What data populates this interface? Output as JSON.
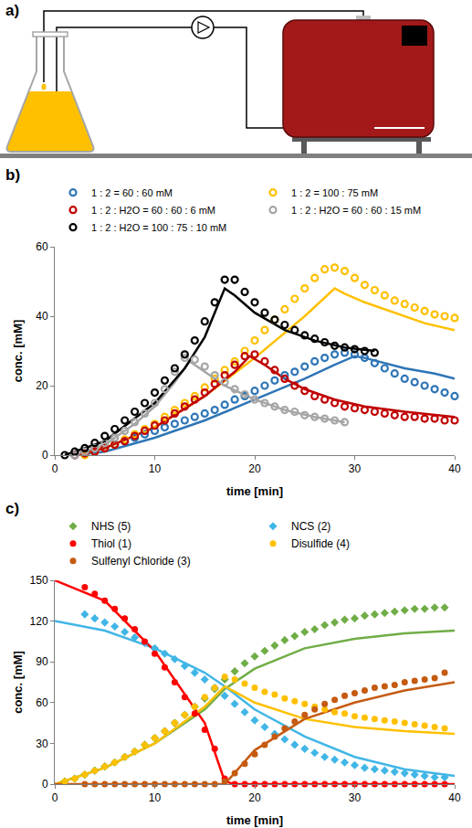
{
  "diagram": {
    "label": "a)"
  },
  "chart_data": [
    {
      "label": "b)",
      "type": "scatter",
      "x_label": "time [min]",
      "y_label": "conc. [mM]",
      "xlim": [
        0,
        40
      ],
      "xticks": [
        0,
        10,
        20,
        30,
        40
      ],
      "ylim": [
        0,
        60
      ],
      "yticks": [
        0,
        20,
        40,
        60
      ],
      "grid": false,
      "legend": "top",
      "series": [
        {
          "name": "1 : 2 = 60 : 60 mM",
          "color": "#2e75b6",
          "marker": "circle-open",
          "x": [
            2,
            3,
            4,
            5,
            6,
            7,
            8,
            9,
            10,
            11,
            12,
            13,
            14,
            15,
            16,
            17,
            18,
            19,
            20,
            21,
            22,
            23,
            24,
            25,
            26,
            27,
            28,
            29,
            30,
            31,
            32,
            33,
            34,
            35,
            36,
            37,
            38,
            39,
            40
          ],
          "values": [
            0,
            0.5,
            1,
            2,
            3,
            4,
            5,
            6,
            7,
            8,
            9,
            10,
            11,
            12,
            13,
            14.5,
            16,
            17,
            18.5,
            20,
            21.5,
            23,
            24,
            25.5,
            27,
            28,
            29,
            29.5,
            29,
            28,
            26.5,
            25,
            23.5,
            22,
            21,
            20,
            19,
            18,
            17
          ],
          "model": {
            "line_style": "solid",
            "x": [
              2,
              5,
              10,
              15,
              20,
              25,
              28,
              30,
              31,
              33,
              35,
              38,
              40
            ],
            "values": [
              0,
              1,
              5,
              10,
              16,
              22,
              26,
              28.5,
              28,
              26.5,
              25,
              23.5,
              22
            ]
          }
        },
        {
          "name": "1 : 2 = 100 : 75 mM",
          "color": "#ffc000",
          "marker": "circle-open",
          "x": [
            3,
            4,
            5,
            6,
            7,
            8,
            9,
            10,
            11,
            12,
            13,
            14,
            15,
            16,
            17,
            18,
            19,
            20,
            21,
            22,
            23,
            24,
            25,
            26,
            27,
            28,
            29,
            30,
            31,
            32,
            33,
            34,
            35,
            36,
            37,
            38,
            39,
            40
          ],
          "values": [
            0,
            1,
            2,
            3,
            4.5,
            6,
            7.5,
            9,
            11,
            13,
            15,
            17,
            19.5,
            22,
            24.5,
            27,
            30,
            33,
            36,
            39,
            42,
            45,
            48,
            51,
            53.5,
            54,
            53,
            51,
            49,
            47.5,
            46,
            44.5,
            43.5,
            42.5,
            41.5,
            40.5,
            40,
            39.5
          ],
          "model": {
            "line_style": "solid",
            "x": [
              2,
              5,
              10,
              15,
              20,
              25,
              28,
              29,
              31,
              34,
              37,
              40
            ],
            "values": [
              0,
              2,
              8,
              17,
              28,
              40,
              48,
              46.5,
              44,
              41,
              38,
              36
            ]
          }
        },
        {
          "name": "1 : 2 : H2O = 60 : 60 : 6 mM",
          "color": "#c00000",
          "marker": "circle-open",
          "x": [
            2,
            3,
            4,
            5,
            6,
            7,
            8,
            9,
            10,
            11,
            12,
            13,
            14,
            15,
            16,
            17,
            18,
            19,
            20,
            21,
            22,
            23,
            24,
            25,
            26,
            27,
            28,
            29,
            30,
            31,
            32,
            33,
            34,
            35,
            36,
            37,
            38,
            39,
            40
          ],
          "values": [
            0,
            0.5,
            1,
            2,
            3,
            4,
            5.5,
            7,
            8.5,
            10,
            12,
            14,
            16,
            18,
            20.5,
            23,
            26,
            28.5,
            29,
            27,
            24.5,
            22,
            20,
            18.5,
            17,
            16,
            15,
            14,
            13.5,
            13,
            12.5,
            12,
            11.5,
            11,
            11,
            10.5,
            10.5,
            10,
            10
          ],
          "model": {
            "line_style": "solid",
            "x": [
              2,
              5,
              10,
              15,
              18,
              19.5,
              21,
              23,
              25,
              28,
              31,
              35,
              40
            ],
            "values": [
              0,
              2,
              8,
              17,
              24,
              28.5,
              26,
              22,
              19,
              16,
              14,
              12.5,
              11
            ]
          }
        },
        {
          "name": "1 : 2 : H2O = 60 : 60 : 15 mM",
          "color": "#a6a6a6",
          "marker": "circle-open",
          "x": [
            2,
            3,
            4,
            5,
            6,
            7,
            8,
            9,
            10,
            11,
            12,
            13,
            14,
            15,
            16,
            17,
            18,
            19,
            20,
            21,
            22,
            23,
            24,
            25,
            26,
            27,
            28,
            29
          ],
          "values": [
            0,
            1,
            2,
            3.5,
            5,
            7,
            9.5,
            12,
            15,
            19,
            24,
            28,
            27.5,
            25.5,
            23,
            21,
            19,
            17.5,
            16,
            15,
            14,
            13,
            12.5,
            11.5,
            11,
            10.5,
            10,
            9.5
          ],
          "model": {
            "line_style": "solid",
            "x": [
              2,
              5,
              8,
              10,
              12,
              13.5,
              15,
              17,
              20,
              23,
              26,
              29
            ],
            "values": [
              0,
              3,
              9,
              14,
              21,
              27,
              24,
              20,
              16,
              13,
              11,
              9.5
            ]
          }
        },
        {
          "name": "1 : 2 : H2O = 100 : 75 : 10 mM",
          "color": "#000000",
          "marker": "circle-open",
          "x": [
            1,
            2,
            3,
            4,
            5,
            6,
            7,
            8,
            9,
            10,
            11,
            12,
            13,
            14,
            15,
            16,
            17,
            18,
            19,
            20,
            21,
            22,
            23,
            24,
            25,
            26,
            27,
            28,
            29,
            30,
            31,
            32
          ],
          "values": [
            0,
            1,
            2,
            3.5,
            5.5,
            7.5,
            10,
            12.5,
            15,
            18,
            21.5,
            25,
            29,
            33,
            38.5,
            44,
            50.5,
            50.5,
            47,
            44,
            41,
            39,
            37.5,
            36,
            34.5,
            33.5,
            32.5,
            31.5,
            31,
            30.5,
            30,
            29.5
          ],
          "model": {
            "line_style": "solid",
            "x": [
              1,
              5,
              10,
              13,
              15,
              17,
              18,
              20,
              23,
              26,
              29,
              32
            ],
            "values": [
              0,
              4,
              15,
              25,
              34,
              48,
              46,
              41,
              36,
              33,
              31,
              30
            ]
          }
        }
      ]
    },
    {
      "label": "c)",
      "type": "scatter",
      "x_label": "time [min]",
      "y_label": "conc. [mM]",
      "xlim": [
        0,
        40
      ],
      "xticks": [
        0,
        10,
        20,
        30,
        40
      ],
      "ylim": [
        0,
        150
      ],
      "yticks": [
        0,
        30,
        60,
        90,
        120,
        150
      ],
      "grid": false,
      "legend": "top",
      "series": [
        {
          "name": "NHS (5)",
          "color": "#70ad47",
          "marker": "diamond",
          "x": [
            1,
            2,
            3,
            4,
            5,
            6,
            7,
            8,
            9,
            10,
            11,
            12,
            13,
            14,
            15,
            16,
            17,
            18,
            19,
            20,
            21,
            22,
            23,
            24,
            25,
            26,
            27,
            28,
            29,
            30,
            31,
            32,
            33,
            34,
            35,
            36,
            37,
            38,
            39
          ],
          "values": [
            2,
            4,
            7,
            10,
            13,
            16,
            20,
            24,
            29,
            34,
            39,
            45,
            51,
            57,
            63,
            70,
            77,
            83,
            89,
            94,
            98,
            102,
            106,
            109,
            112,
            114,
            117,
            119,
            121,
            122,
            124,
            125,
            126,
            127,
            128,
            129,
            129,
            130,
            130
          ],
          "model": {
            "line_style": "solid",
            "x": [
              0,
              5,
              10,
              15,
              17,
              20,
              25,
              30,
              35,
              40
            ],
            "values": [
              0,
              12,
              30,
              55,
              70,
              85,
              100,
              107,
              111,
              113
            ]
          }
        },
        {
          "name": "NCS (2)",
          "color": "#41b6e6",
          "marker": "diamond",
          "x": [
            3,
            4,
            5,
            6,
            7,
            8,
            9,
            10,
            11,
            12,
            13,
            14,
            15,
            16,
            17,
            18,
            19,
            20,
            21,
            22,
            23,
            24,
            25,
            26,
            27,
            28,
            29,
            30,
            31,
            32,
            33,
            34,
            35,
            36,
            37,
            38,
            39
          ],
          "values": [
            125,
            122,
            119,
            116,
            112,
            108,
            104,
            100,
            96,
            92,
            87,
            82,
            77,
            71,
            65,
            59,
            53,
            47,
            42,
            37,
            33,
            29,
            26,
            23,
            20,
            18,
            16,
            14,
            12,
            11,
            10,
            9,
            8,
            7,
            6,
            5,
            5
          ],
          "model": {
            "line_style": "solid",
            "x": [
              0,
              5,
              10,
              15,
              17,
              20,
              25,
              30,
              35,
              40
            ],
            "values": [
              120,
              113,
              100,
              82,
              72,
              55,
              35,
              20,
              11,
              6
            ]
          }
        },
        {
          "name": "Thiol (1)",
          "color": "#ff0000",
          "marker": "circle",
          "x": [
            3,
            4,
            5,
            6,
            7,
            8,
            9,
            10,
            11,
            12,
            13,
            14,
            15,
            16,
            17,
            18,
            19,
            20,
            21,
            22,
            23,
            24,
            25,
            26,
            27,
            28,
            29,
            30,
            31,
            32,
            33,
            34,
            35,
            36,
            37,
            38,
            39
          ],
          "values": [
            145,
            140,
            135,
            129,
            122,
            114,
            105,
            96,
            86,
            75,
            64,
            52,
            40,
            26,
            4,
            0,
            0,
            0,
            0,
            0,
            0,
            0,
            0,
            0,
            0,
            0,
            0,
            0,
            0,
            0,
            0,
            0,
            0,
            0,
            0,
            0,
            0
          ],
          "model": {
            "line_style": "solid",
            "x": [
              0,
              5,
              10,
              15,
              17,
              18,
              40
            ],
            "values": [
              150,
              135,
              98,
              45,
              2,
              0,
              0
            ]
          }
        },
        {
          "name": "Disulfide (4)",
          "color": "#ffc000",
          "marker": "circle",
          "x": [
            1,
            2,
            3,
            4,
            5,
            6,
            7,
            8,
            9,
            10,
            11,
            12,
            13,
            14,
            15,
            16,
            17,
            18,
            19,
            20,
            21,
            22,
            23,
            24,
            25,
            26,
            27,
            28,
            29,
            30,
            31,
            32,
            33,
            34,
            35,
            36,
            37,
            38,
            39
          ],
          "values": [
            2,
            4,
            7,
            10,
            13,
            16,
            20,
            24,
            29,
            34,
            39,
            45,
            51,
            57,
            64,
            71,
            79,
            77,
            74,
            71,
            68,
            66,
            63,
            61,
            59,
            57,
            55,
            53,
            52,
            50,
            49,
            48,
            47,
            46,
            45,
            44,
            43,
            42,
            41
          ],
          "model": {
            "line_style": "solid",
            "x": [
              0,
              5,
              10,
              15,
              17,
              20,
              25,
              30,
              35,
              40
            ],
            "values": [
              0,
              12,
              30,
              57,
              72,
              60,
              48,
              42,
              39,
              37
            ]
          }
        },
        {
          "name": "Sulfenyl Chloride (3)",
          "color": "#c55a11",
          "marker": "circle",
          "x": [
            3,
            4,
            5,
            6,
            7,
            8,
            9,
            10,
            11,
            12,
            13,
            14,
            15,
            16,
            17,
            18,
            19,
            20,
            21,
            22,
            23,
            24,
            25,
            26,
            27,
            28,
            29,
            30,
            31,
            32,
            33,
            34,
            35,
            36,
            37,
            38,
            39
          ],
          "values": [
            0,
            0,
            0,
            0,
            0,
            0,
            0,
            0,
            0,
            0,
            0,
            0,
            0,
            0,
            2,
            8,
            15,
            22,
            29,
            35,
            41,
            46,
            51,
            55,
            59,
            62,
            65,
            67,
            69,
            71,
            72,
            73,
            75,
            76,
            77,
            78,
            82
          ],
          "model": {
            "line_style": "solid",
            "x": [
              0,
              17,
              20,
              25,
              30,
              35,
              40
            ],
            "values": [
              0,
              0,
              25,
              48,
              60,
              69,
              75
            ]
          }
        }
      ]
    }
  ]
}
